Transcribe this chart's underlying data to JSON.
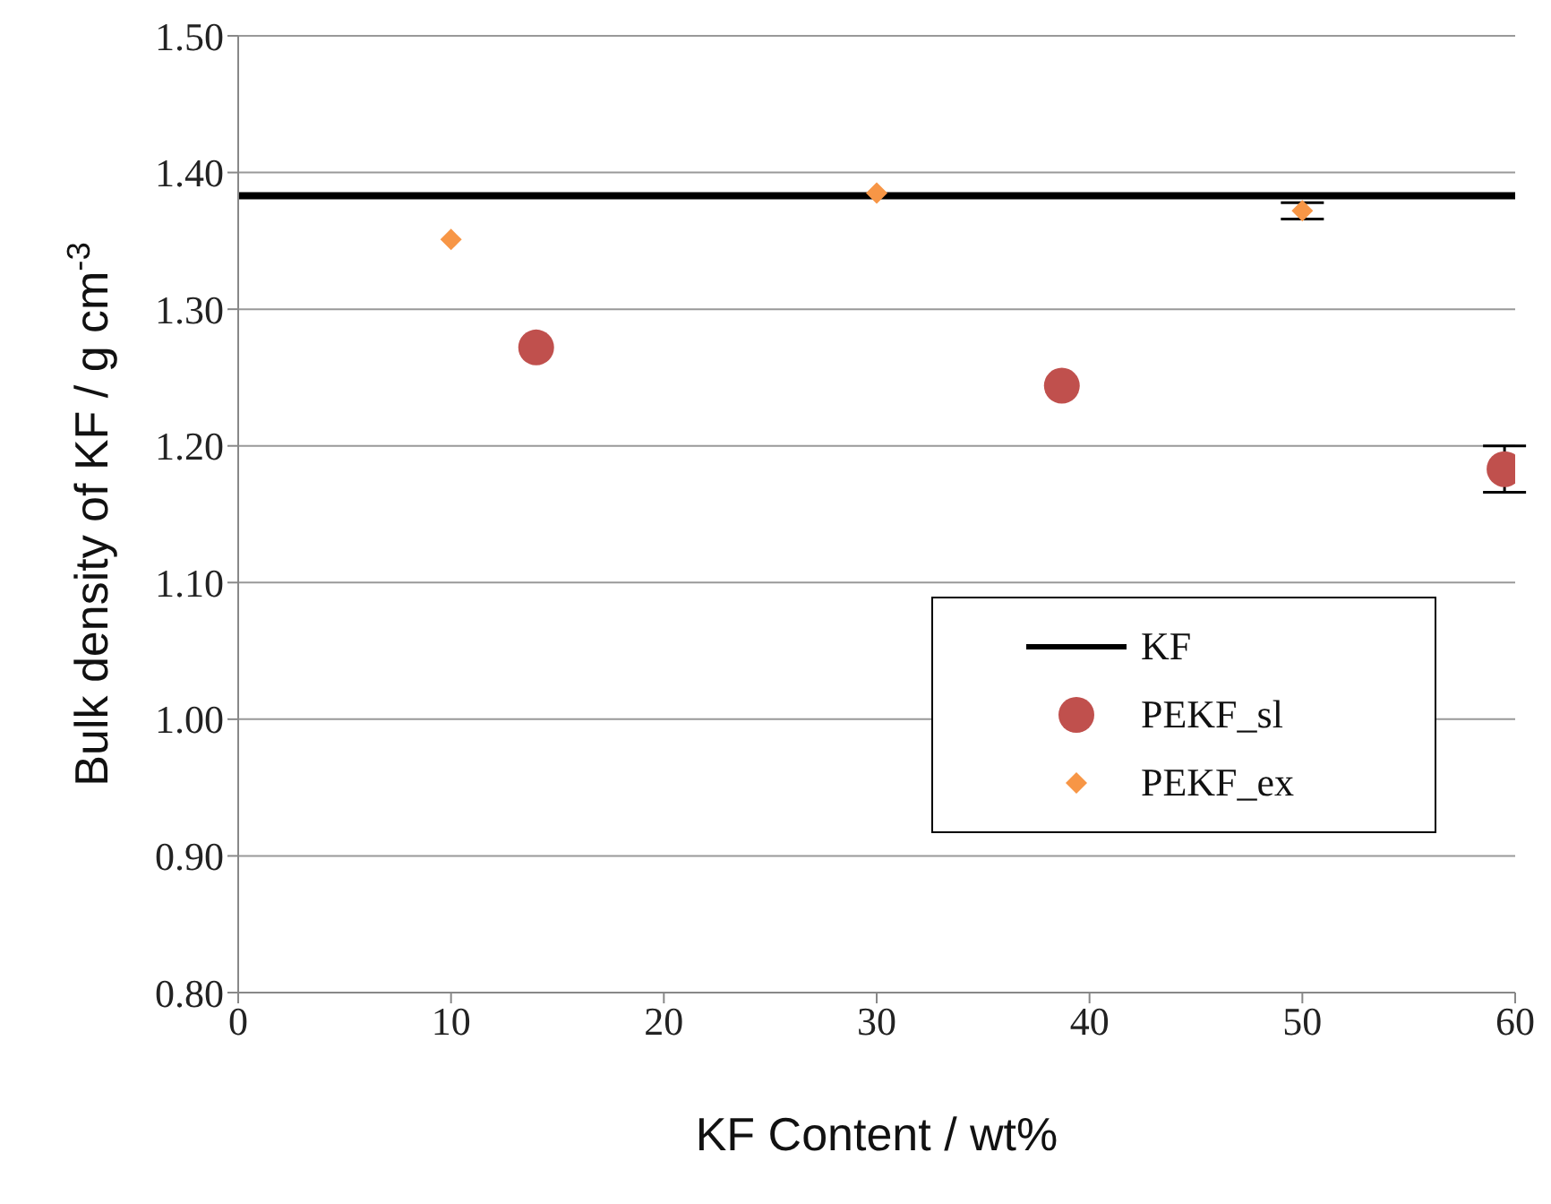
{
  "chart_data": {
    "type": "scatter",
    "xlabel": "KF Content / wt%",
    "ylabel": "Bulk density of KF / g cm$^{-3}$",
    "xlim": [
      0,
      60
    ],
    "xticks": [
      0,
      10,
      20,
      30,
      40,
      50,
      60
    ],
    "ylim": [
      0.8,
      1.5
    ],
    "yticks": [
      {
        "value": 0.8,
        "label": "0.80"
      },
      {
        "value": 0.9,
        "label": "0.90"
      },
      {
        "value": 1.0,
        "label": "1.00"
      },
      {
        "value": 1.1,
        "label": "1.10"
      },
      {
        "value": 1.2,
        "label": "1.20"
      },
      {
        "value": 1.3,
        "label": "1.30"
      },
      {
        "value": 1.4,
        "label": "1.40"
      },
      {
        "value": 1.5,
        "label": "1.50"
      }
    ],
    "grid": "y",
    "legend": "right",
    "series": [
      {
        "name": "KF",
        "type": "line",
        "color": "#000000",
        "marker": "none",
        "x": [
          0,
          60
        ],
        "values": [
          1.383,
          1.383
        ]
      },
      {
        "name": "PEKF_sl",
        "color": "#c0504d",
        "marker": "circle",
        "x": [
          14,
          38.7,
          59.5
        ],
        "values": [
          1.272,
          1.244,
          1.183
        ],
        "errors": [
          null,
          null,
          0.017
        ]
      },
      {
        "name": "PEKF_ex",
        "color": "#f79646",
        "marker": "diamond",
        "x": [
          10,
          30,
          50
        ],
        "values": [
          1.351,
          1.385,
          1.372
        ],
        "errors": [
          null,
          null,
          0.006
        ]
      }
    ]
  }
}
